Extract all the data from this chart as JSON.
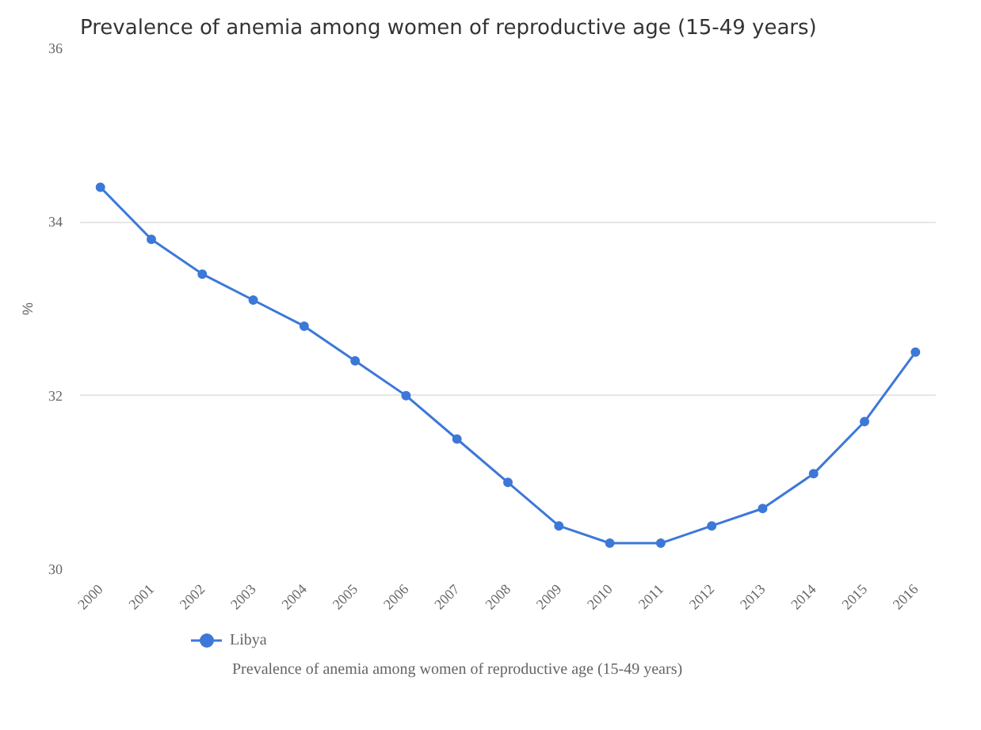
{
  "chart_data": {
    "type": "line",
    "title": "Prevalence of anemia among women of reproductive age (15-49 years)",
    "ylabel": "%",
    "categories": [
      "2000",
      "2001",
      "2002",
      "2003",
      "2004",
      "2005",
      "2006",
      "2007",
      "2008",
      "2009",
      "2010",
      "2011",
      "2012",
      "2013",
      "2014",
      "2015",
      "2016"
    ],
    "series": [
      {
        "name": "Libya",
        "color": "#3c78d8",
        "values": [
          34.4,
          33.8,
          33.4,
          33.1,
          32.8,
          32.4,
          32.0,
          31.5,
          31.0,
          30.5,
          30.3,
          30.3,
          30.5,
          30.7,
          31.1,
          31.7,
          32.5
        ]
      }
    ],
    "ylim": [
      30,
      36
    ],
    "yticks": [
      30,
      32,
      34,
      36
    ],
    "grid": "y",
    "legend": "bottom",
    "marker": "circle",
    "line_style": "solid",
    "annotations": [
      "Prevalence of anemia among women of reproductive age (15-49 years)"
    ]
  }
}
